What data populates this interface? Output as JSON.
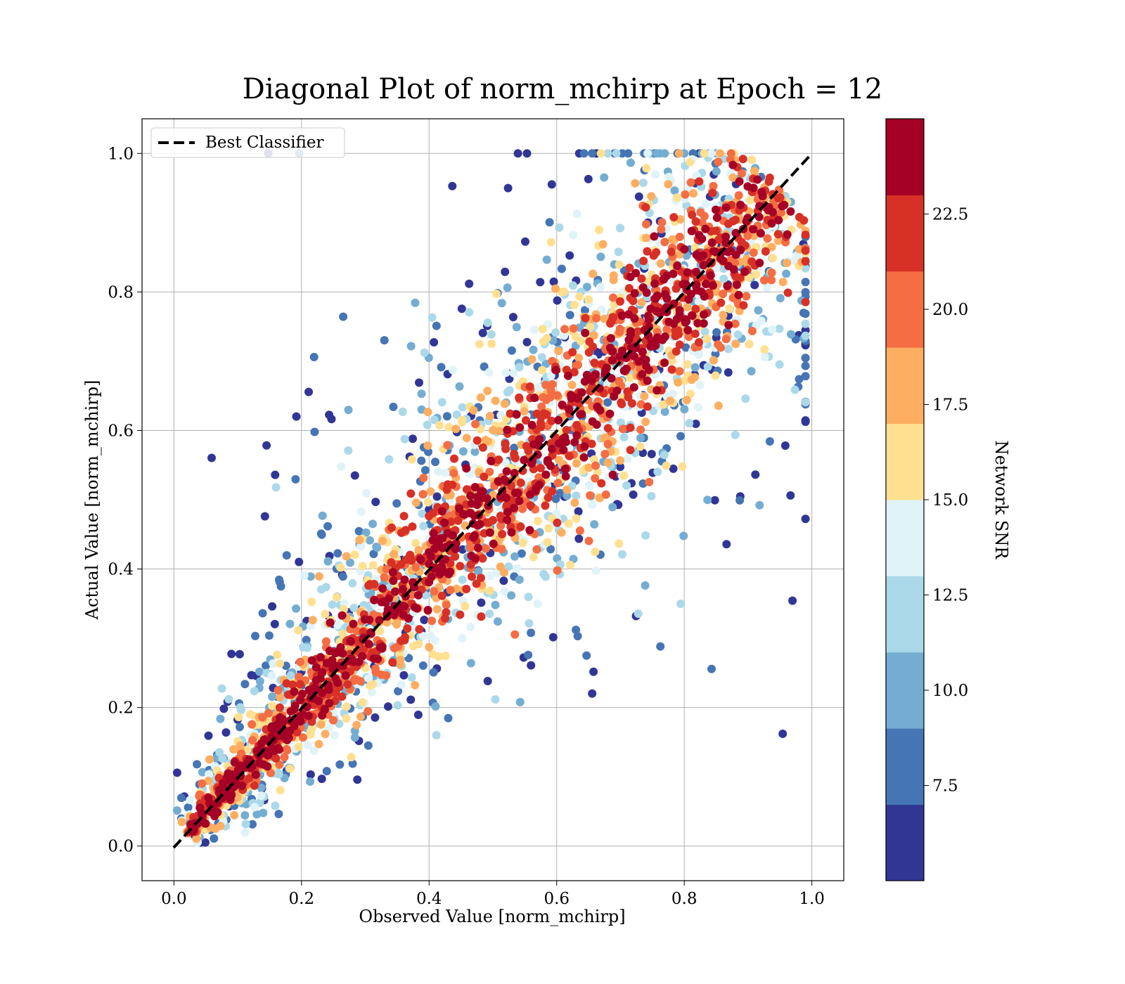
{
  "chart_data": {
    "type": "scatter",
    "title": "Diagonal Plot of norm_mchirp at Epoch = 12",
    "xlabel": "Observed Value [norm_mchirp]",
    "ylabel": "Actual Value [norm_mchirp]",
    "xlim": [
      -0.05,
      1.05
    ],
    "ylim": [
      -0.05,
      1.05
    ],
    "xticks": [
      "0.0",
      "0.2",
      "0.4",
      "0.6",
      "0.8",
      "1.0"
    ],
    "yticks": [
      "0.0",
      "0.2",
      "0.4",
      "0.6",
      "0.8",
      "1.0"
    ],
    "grid": true,
    "legend": {
      "placement": "top-left",
      "entries": [
        {
          "label": "Best Classifier",
          "style": "dashed",
          "color": "#000000"
        }
      ]
    },
    "reference_line": {
      "label": "Best Classifier",
      "x": [
        0,
        1
      ],
      "y": [
        0,
        1
      ]
    },
    "colorbar": {
      "label": "Network SNR",
      "range": [
        5,
        25
      ],
      "ticks": [
        "7.5",
        "10.0",
        "12.5",
        "15.0",
        "17.5",
        "20.0",
        "22.5"
      ],
      "colors": [
        "#313695",
        "#4575b4",
        "#74add1",
        "#abd9e9",
        "#e0f3f8",
        "#fee090",
        "#fdae61",
        "#f46d43",
        "#d73027",
        "#a50026"
      ]
    },
    "series": [
      {
        "snr_range": [
          5.0,
          7.0
        ],
        "color": "#313695",
        "spread": 0.19
      },
      {
        "snr_range": [
          7.0,
          9.0
        ],
        "color": "#4575b4",
        "spread": 0.15
      },
      {
        "snr_range": [
          9.0,
          11.0
        ],
        "color": "#74add1",
        "spread": 0.12
      },
      {
        "snr_range": [
          11.0,
          13.0
        ],
        "color": "#abd9e9",
        "spread": 0.1
      },
      {
        "snr_range": [
          13.0,
          15.0
        ],
        "color": "#e0f3f8",
        "spread": 0.085
      },
      {
        "snr_range": [
          15.0,
          17.0
        ],
        "color": "#fee090",
        "spread": 0.075
      },
      {
        "snr_range": [
          17.0,
          19.0
        ],
        "color": "#fdae61",
        "spread": 0.065
      },
      {
        "snr_range": [
          19.0,
          21.0
        ],
        "color": "#f46d43",
        "spread": 0.055
      },
      {
        "snr_range": [
          21.0,
          23.0
        ],
        "color": "#d73027",
        "spread": 0.045
      },
      {
        "snr_range": [
          23.0,
          25.0
        ],
        "color": "#a50026",
        "spread": 0.03
      }
    ]
  }
}
